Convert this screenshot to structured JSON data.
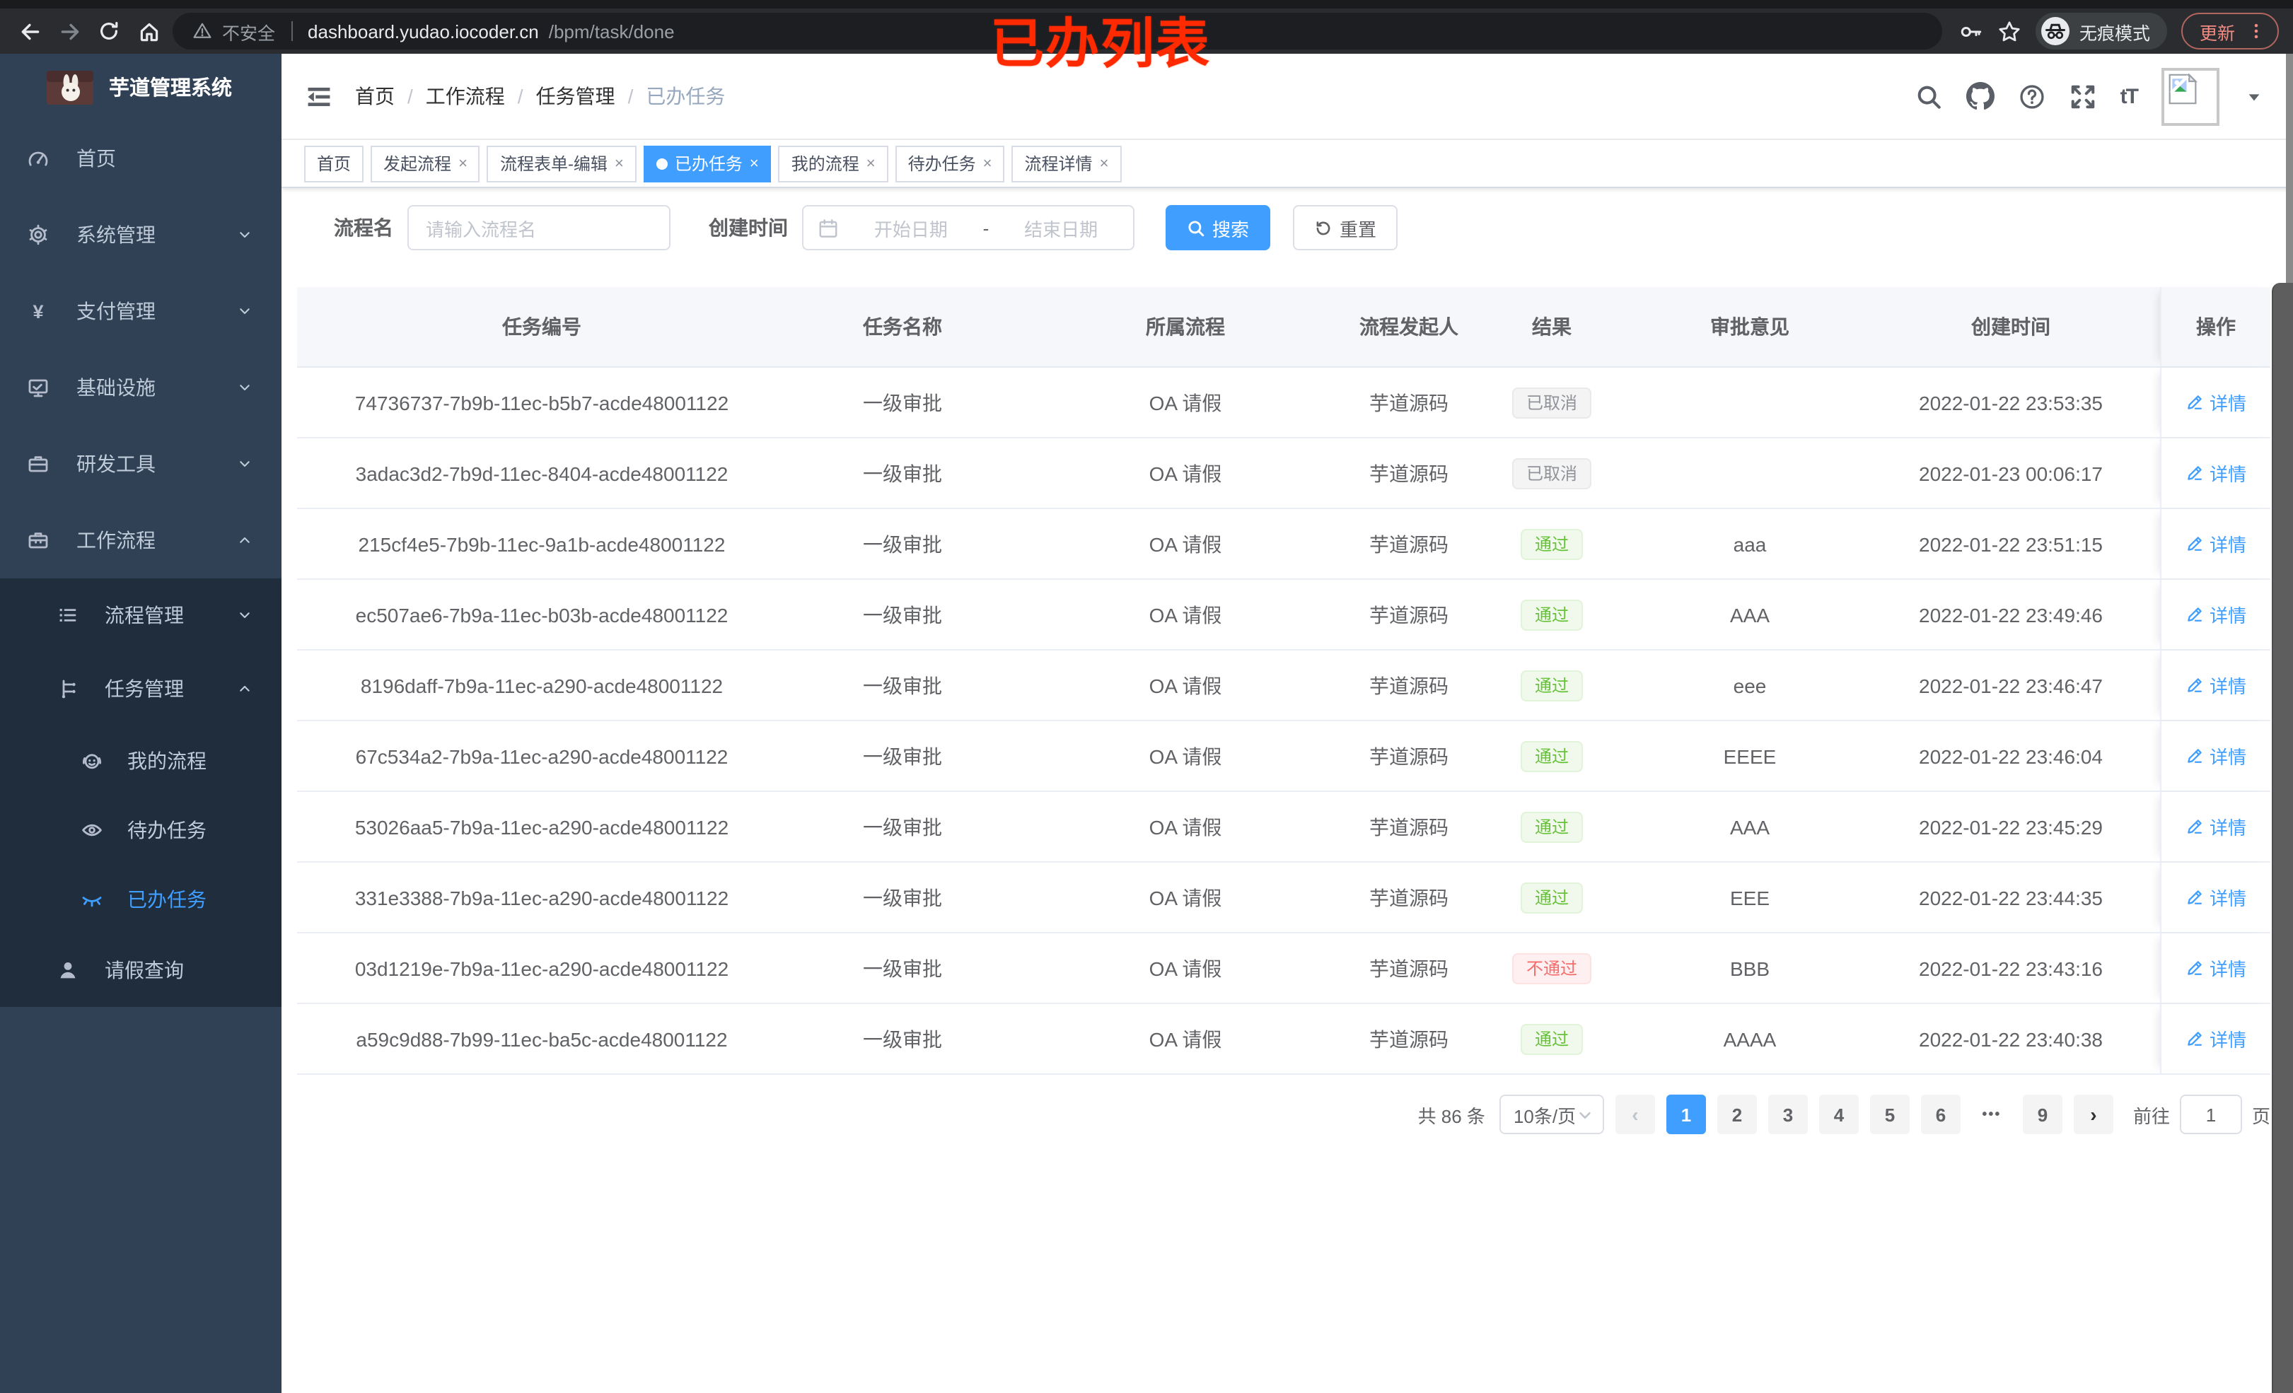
{
  "browser": {
    "security_label": "不安全",
    "url_host": "dashboard.yudao.iocoder.cn",
    "url_path": "/bpm/task/done",
    "incognito_label": "无痕模式",
    "update_label": "更新"
  },
  "overlay": {
    "title": "已办列表",
    "color": "#ff2a00"
  },
  "sidebar": {
    "logo_title": "芋道管理系统",
    "items": [
      {
        "label": "首页",
        "icon": "dashboard-icon",
        "level": 1,
        "chevron": null,
        "active": false
      },
      {
        "label": "系统管理",
        "icon": "gear-icon",
        "level": 1,
        "chevron": "down",
        "active": false
      },
      {
        "label": "支付管理",
        "icon": "yen-icon",
        "level": 1,
        "chevron": "down",
        "active": false
      },
      {
        "label": "基础设施",
        "icon": "monitor-icon",
        "level": 1,
        "chevron": "down",
        "active": false
      },
      {
        "label": "研发工具",
        "icon": "briefcase-icon",
        "level": 1,
        "chevron": "down",
        "active": false
      },
      {
        "label": "工作流程",
        "icon": "toolbox-icon",
        "level": 1,
        "chevron": "up",
        "active": false
      },
      {
        "label": "流程管理",
        "icon": "list-icon",
        "level": 2,
        "chevron": "down",
        "active": false
      },
      {
        "label": "任务管理",
        "icon": "tree-icon",
        "level": 2,
        "chevron": "up",
        "active": false
      },
      {
        "label": "我的流程",
        "icon": "robot-icon",
        "level": 3,
        "chevron": null,
        "active": false
      },
      {
        "label": "待办任务",
        "icon": "eye-icon",
        "level": 3,
        "chevron": null,
        "active": false
      },
      {
        "label": "已办任务",
        "icon": "eye-closed-icon",
        "level": 3,
        "chevron": null,
        "active": true
      },
      {
        "label": "请假查询",
        "icon": "user-icon",
        "level": 2,
        "chevron": null,
        "active": false
      }
    ]
  },
  "header": {
    "breadcrumb": [
      "首页",
      "工作流程",
      "任务管理",
      "已办任务"
    ],
    "icons": [
      "search-icon",
      "github-icon",
      "help-icon",
      "fullscreen-icon",
      "font-size-icon"
    ]
  },
  "tabs": [
    {
      "label": "首页",
      "closable": false,
      "active": false
    },
    {
      "label": "发起流程",
      "closable": true,
      "active": false
    },
    {
      "label": "流程表单-编辑",
      "closable": true,
      "active": false
    },
    {
      "label": "已办任务",
      "closable": true,
      "active": true
    },
    {
      "label": "我的流程",
      "closable": true,
      "active": false
    },
    {
      "label": "待办任务",
      "closable": true,
      "active": false
    },
    {
      "label": "流程详情",
      "closable": true,
      "active": false
    }
  ],
  "search": {
    "name_label": "流程名",
    "name_placeholder": "请输入流程名",
    "time_label": "创建时间",
    "start_placeholder": "开始日期",
    "range_separator": "-",
    "end_placeholder": "结束日期",
    "search_label": "搜索",
    "reset_label": "重置"
  },
  "table": {
    "columns": [
      "任务编号",
      "任务名称",
      "所属流程",
      "流程发起人",
      "结果",
      "审批意见",
      "创建时间",
      "操作"
    ],
    "detail_label": "详情",
    "rows": [
      {
        "id": "74736737-7b9b-11ec-b5b7-acde48001122",
        "task_name": "一级审批",
        "process": "OA 请假",
        "starter": "芋道源码",
        "result": "已取消",
        "result_type": "info",
        "comment": "",
        "created": "2022-01-22 23:53:35"
      },
      {
        "id": "3adac3d2-7b9d-11ec-8404-acde48001122",
        "task_name": "一级审批",
        "process": "OA 请假",
        "starter": "芋道源码",
        "result": "已取消",
        "result_type": "info",
        "comment": "",
        "created": "2022-01-23 00:06:17"
      },
      {
        "id": "215cf4e5-7b9b-11ec-9a1b-acde48001122",
        "task_name": "一级审批",
        "process": "OA 请假",
        "starter": "芋道源码",
        "result": "通过",
        "result_type": "success",
        "comment": "aaa",
        "created": "2022-01-22 23:51:15"
      },
      {
        "id": "ec507ae6-7b9a-11ec-b03b-acde48001122",
        "task_name": "一级审批",
        "process": "OA 请假",
        "starter": "芋道源码",
        "result": "通过",
        "result_type": "success",
        "comment": "AAA",
        "created": "2022-01-22 23:49:46"
      },
      {
        "id": "8196daff-7b9a-11ec-a290-acde48001122",
        "task_name": "一级审批",
        "process": "OA 请假",
        "starter": "芋道源码",
        "result": "通过",
        "result_type": "success",
        "comment": "eee",
        "created": "2022-01-22 23:46:47"
      },
      {
        "id": "67c534a2-7b9a-11ec-a290-acde48001122",
        "task_name": "一级审批",
        "process": "OA 请假",
        "starter": "芋道源码",
        "result": "通过",
        "result_type": "success",
        "comment": "EEEE",
        "created": "2022-01-22 23:46:04"
      },
      {
        "id": "53026aa5-7b9a-11ec-a290-acde48001122",
        "task_name": "一级审批",
        "process": "OA 请假",
        "starter": "芋道源码",
        "result": "通过",
        "result_type": "success",
        "comment": "AAA",
        "created": "2022-01-22 23:45:29"
      },
      {
        "id": "331e3388-7b9a-11ec-a290-acde48001122",
        "task_name": "一级审批",
        "process": "OA 请假",
        "starter": "芋道源码",
        "result": "通过",
        "result_type": "success",
        "comment": "EEE",
        "created": "2022-01-22 23:44:35"
      },
      {
        "id": "03d1219e-7b9a-11ec-a290-acde48001122",
        "task_name": "一级审批",
        "process": "OA 请假",
        "starter": "芋道源码",
        "result": "不通过",
        "result_type": "danger",
        "comment": "BBB",
        "created": "2022-01-22 23:43:16"
      },
      {
        "id": "a59c9d88-7b99-11ec-ba5c-acde48001122",
        "task_name": "一级审批",
        "process": "OA 请假",
        "starter": "芋道源码",
        "result": "通过",
        "result_type": "success",
        "comment": "AAAA",
        "created": "2022-01-22 23:40:38"
      }
    ]
  },
  "pagination": {
    "total_label": "共 86 条",
    "page_size_label": "10条/页",
    "pages": [
      "1",
      "2",
      "3",
      "4",
      "5",
      "6",
      "•••",
      "9"
    ],
    "active_page": "1",
    "goto_label": "前往",
    "goto_value": "1",
    "unit_label": "页"
  },
  "colors": {
    "accent": "#409eff",
    "sidebar_bg": "#304156",
    "submenu_bg": "#1f2d3d",
    "success_text": "#67c23a",
    "danger_text": "#f56c6c",
    "info_text": "#909399",
    "overlay_red": "#ff2a00"
  }
}
